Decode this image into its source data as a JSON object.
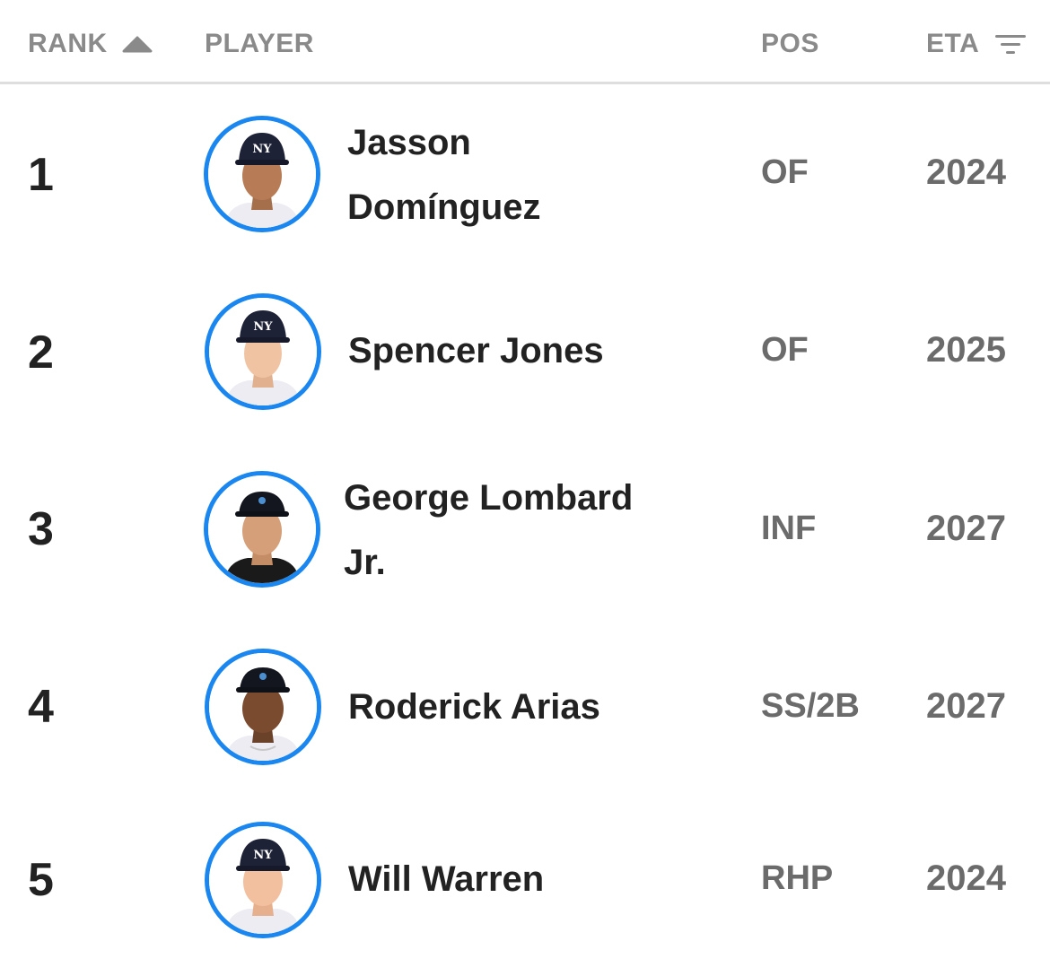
{
  "header": {
    "rank_label": "RANK",
    "rank_sort_icon": "sort-ascending-icon",
    "player_label": "PLAYER",
    "pos_label": "POS",
    "eta_label": "ETA",
    "eta_filter_icon": "filter-icon"
  },
  "colors": {
    "avatar_ring": "#1a86f0",
    "header_text": "#8a8a8a",
    "value_text": "#6b6b6b",
    "name_text": "#222222"
  },
  "players": [
    {
      "rank": "1",
      "name_line1": "Jasson",
      "name_line2": "Domínguez",
      "pos": "OF",
      "eta": "2024"
    },
    {
      "rank": "2",
      "name_line1": "Spencer Jones",
      "name_line2": "",
      "pos": "OF",
      "eta": "2025"
    },
    {
      "rank": "3",
      "name_line1": "George Lombard",
      "name_line2": "Jr.",
      "pos": "INF",
      "eta": "2027"
    },
    {
      "rank": "4",
      "name_line1": "Roderick Arias",
      "name_line2": "",
      "pos": "SS/2B",
      "eta": "2027"
    },
    {
      "rank": "5",
      "name_line1": "Will Warren",
      "name_line2": "",
      "pos": "RHP",
      "eta": "2024"
    }
  ]
}
